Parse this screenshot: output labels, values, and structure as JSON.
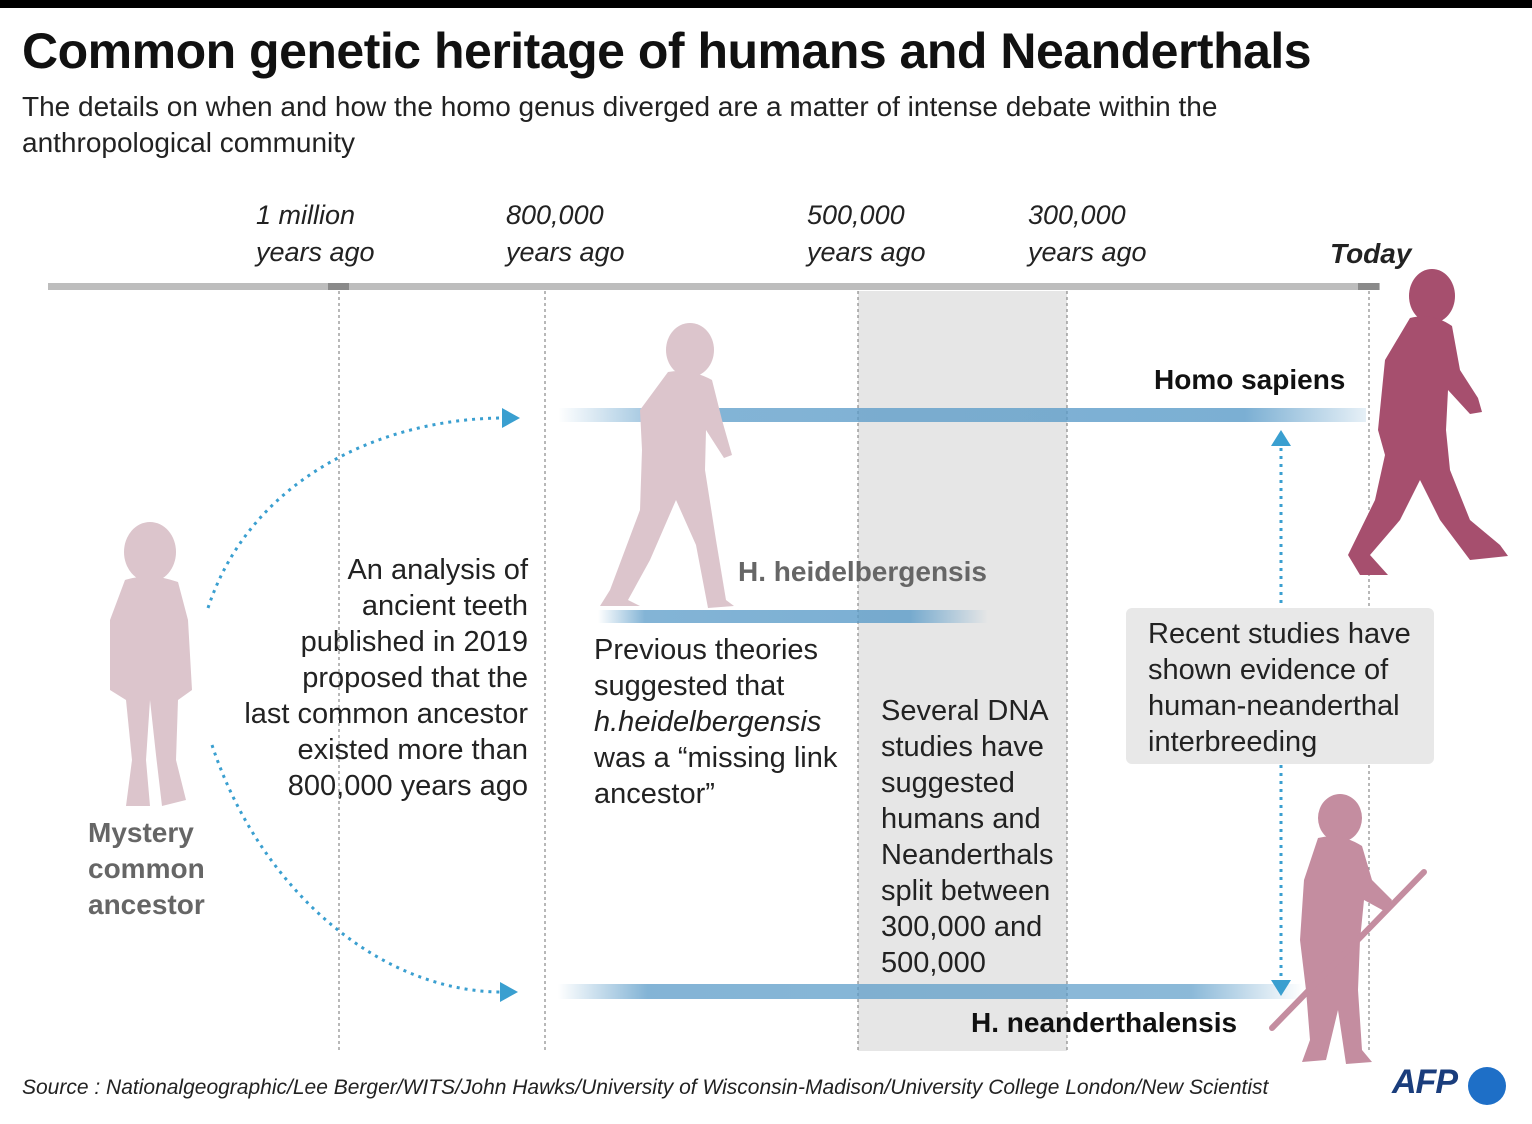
{
  "title": "Common genetic heritage of humans  and Neanderthals",
  "subtitle": "The details on when and how the homo genus diverged are a matter of intense debate within the anthropological community",
  "timeline": {
    "ticks": [
      {
        "line1": "1 million",
        "line2": "years ago"
      },
      {
        "line1": "800,000",
        "line2": "years ago"
      },
      {
        "line1": "500,000",
        "line2": "years ago"
      },
      {
        "line1": "300,000",
        "line2": "years ago"
      }
    ],
    "today": "Today"
  },
  "labels": {
    "homo_sapiens": "Homo sapiens",
    "heidelbergensis": "H. heidelbergensis",
    "neanderthalensis": "H. neanderthalensis",
    "ancestor": [
      "Mystery",
      "common",
      "ancestor"
    ]
  },
  "notes": {
    "teeth": [
      "An analysis of",
      "ancient teeth",
      "published in 2019",
      "proposed that the",
      "last common ancestor",
      "existed more than",
      "800,000 years ago"
    ],
    "previous": [
      "Previous theories",
      "suggested that",
      "h.heidelbergensis",
      "was a “missing link",
      "ancestor”"
    ],
    "dna": [
      "Several DNA",
      "studies have",
      "suggested",
      "humans and",
      "Neanderthals",
      "split between",
      "300,000 and",
      "500,000"
    ],
    "interbreeding": [
      "Recent studies have",
      "shown evidence of",
      "human-neanderthal",
      "interbreeding"
    ]
  },
  "colors": {
    "lineage_bar": "#5a9bc8",
    "split_band": "#e6e6e6",
    "arrow": "#3a9fd0",
    "figure_light": "#dcc5cc",
    "figure_dark": "#a64f6e",
    "figure_mid": "#c48da0"
  },
  "icons": [
    "ancestor-figure",
    "heidelbergensis-figure",
    "sapiens-figure",
    "neanderthal-figure"
  ],
  "source": "Source : Nationalgeographic/Lee Berger/WITS/John Hawks/University of Wisconsin-Madison/University College London/New Scientist",
  "logo": "AFP"
}
